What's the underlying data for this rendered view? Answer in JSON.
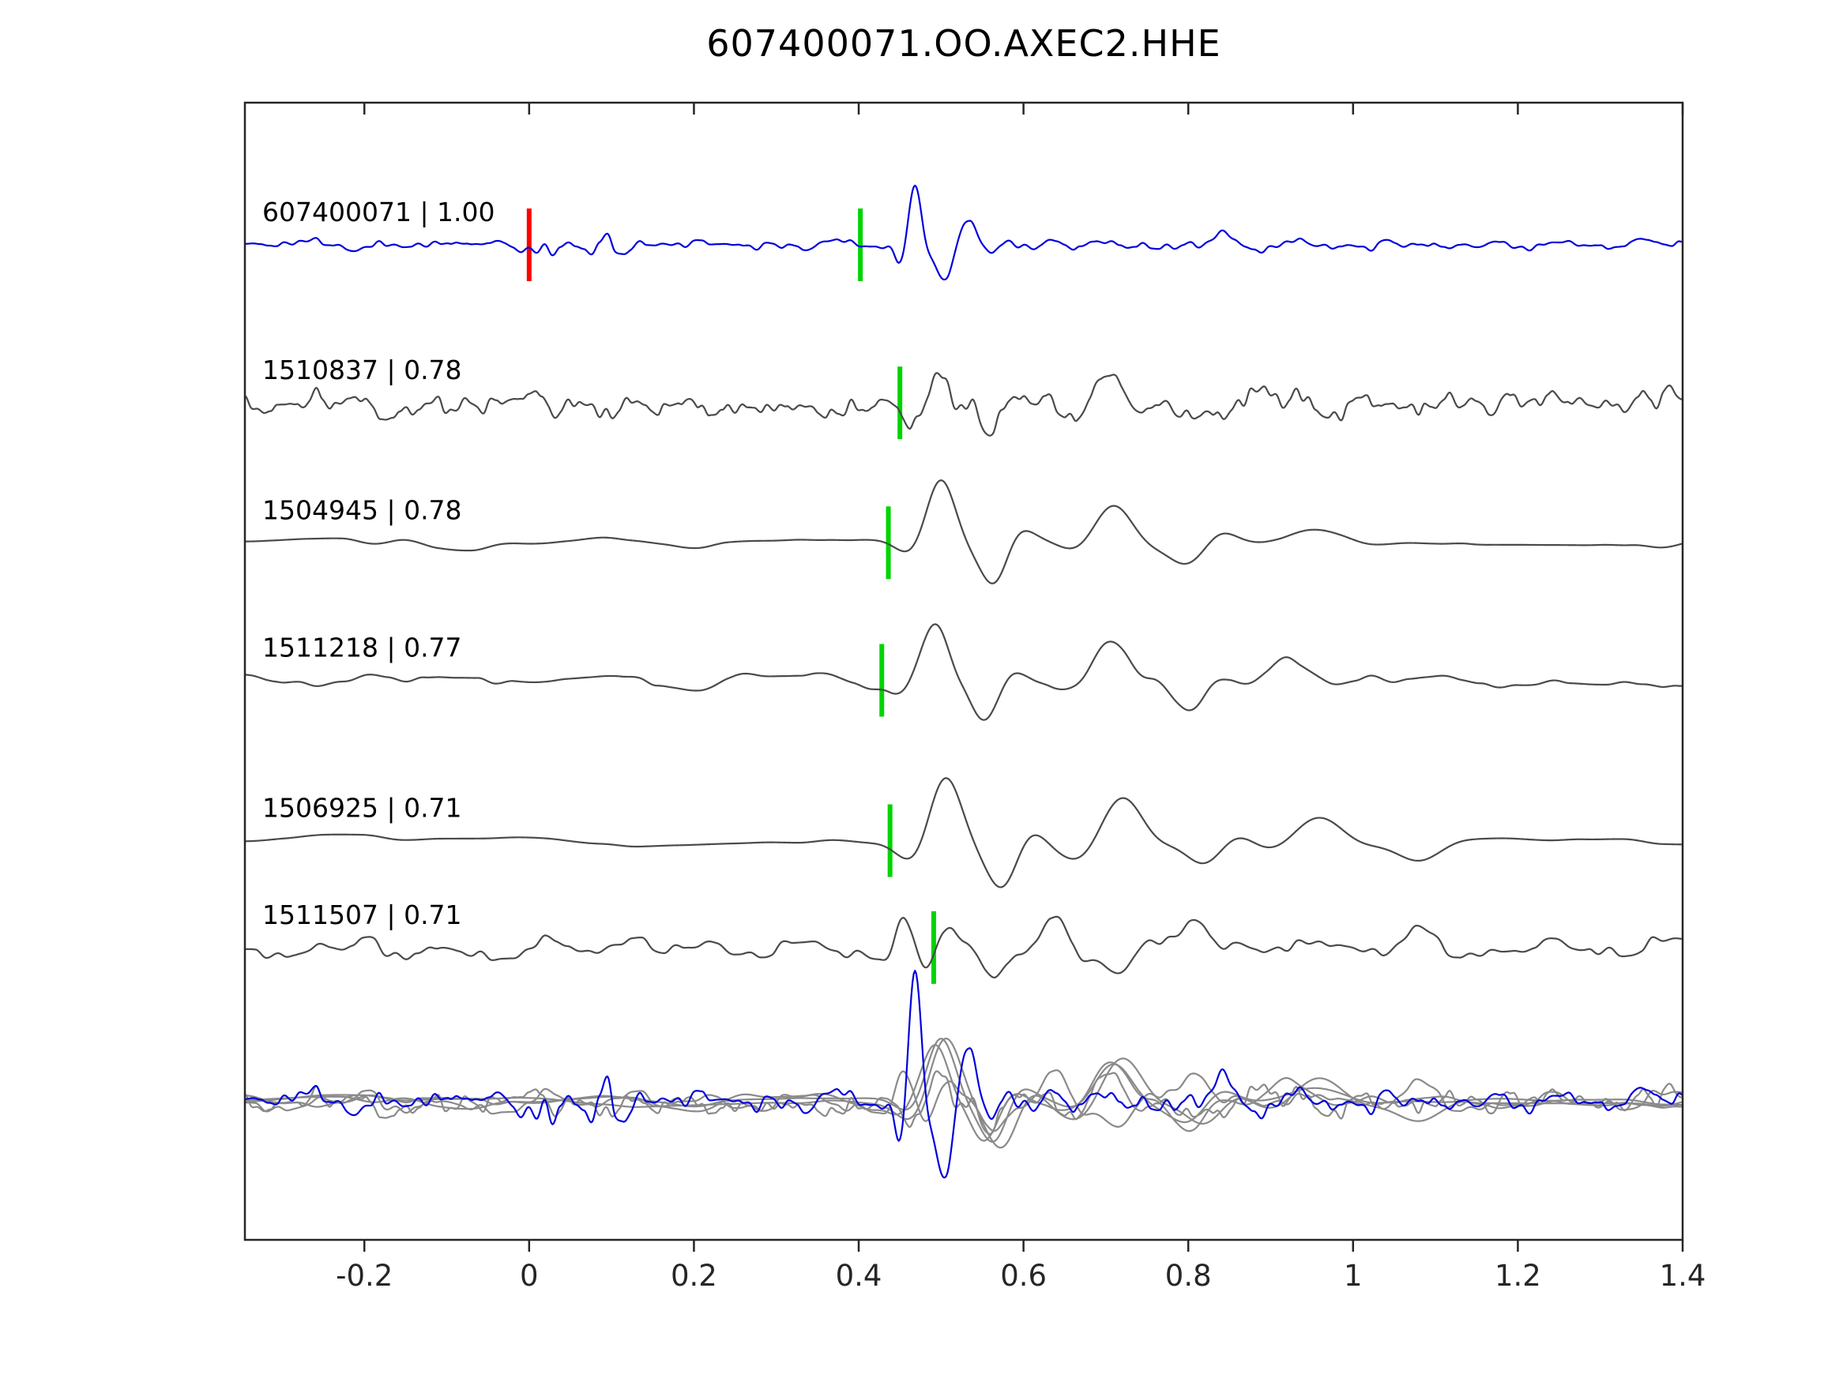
{
  "title": "607400071.OO.AXEC2.HHE",
  "chart_data": {
    "type": "line",
    "title": "607400071.OO.AXEC2.HHE",
    "xlabel": "",
    "ylabel": "",
    "grid": false,
    "legend": "none",
    "xlim": [
      -0.345,
      1.4
    ],
    "x_tick_values": [
      -0.2,
      0,
      0.2,
      0.4,
      0.6,
      0.8,
      1.0,
      1.2,
      1.4
    ],
    "x_tick_labels": [
      "-0.2",
      "0",
      "0.2",
      "0.4",
      "0.6",
      "0.8",
      "1",
      "1.2",
      "1.4"
    ],
    "colors": {
      "reference_trace": "#0000dd",
      "match_trace": "#4a4a4a",
      "overlay_gray": "#8a8a8a",
      "pick_marker": "#00d400",
      "origin_marker": "#ff0000",
      "axis": "#262626",
      "label_text": "#000000"
    },
    "markers": {
      "half_height": 46,
      "width": 6
    },
    "series": [
      {
        "label": "607400071 | 1.00",
        "id": "607400071",
        "correlation": 1.0,
        "role": "reference",
        "baseline_frac": 0.125,
        "pick_x": 0.402,
        "origin_marker_x": 0.0,
        "seed": 11,
        "noise": {
          "scale": 0.022,
          "amp": 9,
          "o2": 0.5,
          "burst": {
            "c": 0.075,
            "w": 0.055,
            "amp": 16
          }
        },
        "packets": [
          {
            "c": 0.468,
            "w": 0.02,
            "per": 0.05,
            "ph": 1.57,
            "amp": 78
          },
          {
            "c": 0.505,
            "w": 0.022,
            "per": 0.06,
            "ph": -1.57,
            "amp": 45
          },
          {
            "c": 0.538,
            "w": 0.02,
            "per": 0.06,
            "ph": 1.57,
            "amp": 20
          },
          {
            "c": 0.63,
            "w": 0.04,
            "per": 0.09,
            "ph": 0.5,
            "amp": 10
          },
          {
            "c": 0.84,
            "w": 0.06,
            "per": 0.12,
            "ph": 1.57,
            "amp": 13
          }
        ]
      },
      {
        "label": "1510837 | 0.78",
        "id": "1510837",
        "correlation": 0.78,
        "role": "match",
        "baseline_frac": 0.264,
        "pick_x": 0.45,
        "seed": 22,
        "noise": {
          "scale": 0.018,
          "amp": 20,
          "o2": 0.45
        },
        "packets": [
          {
            "c": 0.495,
            "w": 0.035,
            "per": 0.09,
            "ph": 1.57,
            "amp": 42
          },
          {
            "c": 0.56,
            "w": 0.03,
            "per": 0.08,
            "ph": -1.57,
            "amp": 30
          },
          {
            "c": 0.7,
            "w": 0.05,
            "per": 0.12,
            "ph": 1.57,
            "amp": 38
          },
          {
            "c": 0.85,
            "w": 0.05,
            "per": 0.12,
            "ph": 0.0,
            "amp": 20
          }
        ]
      },
      {
        "label": "1504945 | 0.78",
        "id": "1504945",
        "correlation": 0.78,
        "role": "match",
        "baseline_frac": 0.387,
        "pick_x": 0.436,
        "seed": 33,
        "noise": {
          "scale": 0.09,
          "amp": 10,
          "o2": 0.35
        },
        "packets": [
          {
            "c": 0.5,
            "w": 0.04,
            "per": 0.11,
            "ph": 1.57,
            "amp": 72
          },
          {
            "c": 0.565,
            "w": 0.035,
            "per": 0.1,
            "ph": -1.57,
            "amp": 45
          },
          {
            "c": 0.71,
            "w": 0.055,
            "per": 0.14,
            "ph": 1.57,
            "amp": 48
          },
          {
            "c": 0.8,
            "w": 0.05,
            "per": 0.13,
            "ph": -1.57,
            "amp": 30
          },
          {
            "c": 0.95,
            "w": 0.07,
            "per": 0.2,
            "ph": 1.3,
            "amp": 12
          }
        ]
      },
      {
        "label": "1511218 | 0.77",
        "id": "1511218",
        "correlation": 0.77,
        "role": "match",
        "baseline_frac": 0.508,
        "pick_x": 0.428,
        "seed": 44,
        "noise": {
          "scale": 0.05,
          "amp": 12,
          "o2": 0.4
        },
        "packets": [
          {
            "c": 0.49,
            "w": 0.04,
            "per": 0.11,
            "ph": 1.57,
            "amp": 68
          },
          {
            "c": 0.555,
            "w": 0.035,
            "per": 0.1,
            "ph": -1.57,
            "amp": 42
          },
          {
            "c": 0.705,
            "w": 0.055,
            "per": 0.14,
            "ph": 1.57,
            "amp": 50
          },
          {
            "c": 0.8,
            "w": 0.05,
            "per": 0.13,
            "ph": -1.57,
            "amp": 28
          },
          {
            "c": 0.93,
            "w": 0.06,
            "per": 0.16,
            "ph": 1.57,
            "amp": 22
          }
        ]
      },
      {
        "label": "1506925 | 0.71",
        "id": "1506925",
        "correlation": 0.71,
        "role": "match",
        "baseline_frac": 0.649,
        "pick_x": 0.438,
        "seed": 55,
        "noise": {
          "scale": 0.11,
          "amp": 9,
          "o2": 0.35
        },
        "packets": [
          {
            "c": 0.505,
            "w": 0.045,
            "per": 0.12,
            "ph": 1.57,
            "amp": 78
          },
          {
            "c": 0.575,
            "w": 0.04,
            "per": 0.11,
            "ph": -1.57,
            "amp": 50
          },
          {
            "c": 0.72,
            "w": 0.06,
            "per": 0.15,
            "ph": 1.57,
            "amp": 52
          },
          {
            "c": 0.82,
            "w": 0.05,
            "per": 0.13,
            "ph": -1.57,
            "amp": 28
          },
          {
            "c": 0.96,
            "w": 0.07,
            "per": 0.18,
            "ph": 1.57,
            "amp": 30
          },
          {
            "c": 1.08,
            "w": 0.06,
            "per": 0.16,
            "ph": -1.57,
            "amp": 18
          }
        ]
      },
      {
        "label": "1511507 | 0.71",
        "id": "1511507",
        "correlation": 0.71,
        "role": "match",
        "baseline_frac": 0.743,
        "pick_x": 0.491,
        "seed": 66,
        "noise": {
          "scale": 0.03,
          "amp": 14,
          "o2": 0.45
        },
        "packets": [
          {
            "c": 0.455,
            "w": 0.03,
            "per": 0.08,
            "ph": 1.57,
            "amp": 38
          },
          {
            "c": 0.5,
            "w": 0.025,
            "per": 0.07,
            "ph": 1.0,
            "amp": 30
          },
          {
            "c": 0.56,
            "w": 0.03,
            "per": 0.09,
            "ph": -1.57,
            "amp": 35
          },
          {
            "c": 0.635,
            "w": 0.04,
            "per": 0.11,
            "ph": 1.57,
            "amp": 45
          },
          {
            "c": 0.72,
            "w": 0.04,
            "per": 0.11,
            "ph": -1.3,
            "amp": 30
          },
          {
            "c": 0.8,
            "w": 0.04,
            "per": 0.1,
            "ph": 1.2,
            "amp": 25
          },
          {
            "c": 1.08,
            "w": 0.05,
            "per": 0.12,
            "ph": 1.4,
            "amp": 22
          }
        ]
      }
    ],
    "overlay": {
      "baseline_frac": 0.878,
      "gray_scale": 1.0,
      "ref_scale": 2.2
    }
  }
}
